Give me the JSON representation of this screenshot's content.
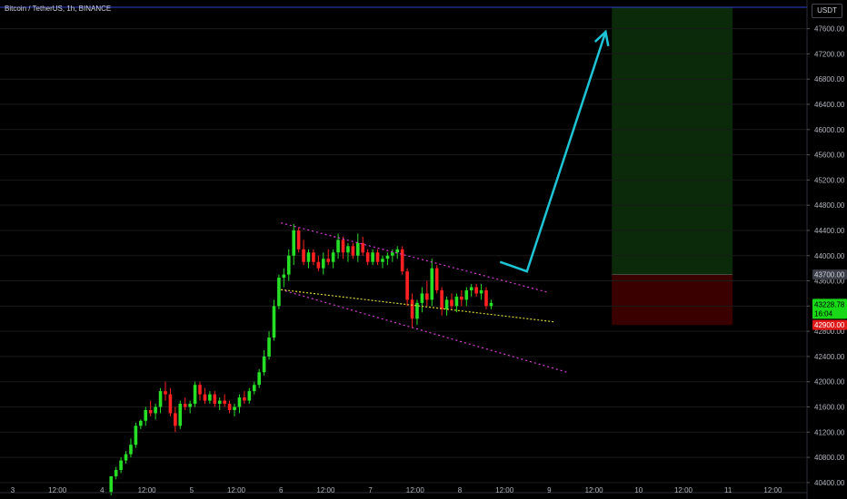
{
  "header": {
    "symbol": "Bitcoin / TetherUS, 1h, BINANCE",
    "currency": "USDT"
  },
  "chart_data": {
    "type": "candlestick",
    "ylim": [
      40240,
      47940
    ],
    "yticks": [
      40400,
      40800,
      41200,
      41600,
      42000,
      42400,
      42800,
      43200,
      43600,
      44000,
      44400,
      44800,
      45200,
      45600,
      46000,
      46400,
      46800,
      47200,
      47600
    ],
    "xticks": [
      "3",
      "12:00",
      "4",
      "12:00",
      "5",
      "12:00",
      "6",
      "12:00",
      "7",
      "12:00",
      "8",
      "12:00",
      "9",
      "12:00",
      "10",
      "12:00",
      "11",
      "12:00"
    ],
    "price_labels": {
      "target": "43700.00",
      "current": "43228.78",
      "countdown": "16:04",
      "stop": "42900.00"
    },
    "candles": [
      [
        40250,
        40200,
        40500,
        40500
      ],
      [
        40500,
        40450,
        40650,
        40600
      ],
      [
        40600,
        40550,
        40800,
        40750
      ],
      [
        40750,
        40700,
        40900,
        40850
      ],
      [
        40850,
        40800,
        41100,
        41000
      ],
      [
        41000,
        40950,
        41350,
        41300
      ],
      [
        41300,
        41250,
        41400,
        41380
      ],
      [
        41380,
        41300,
        41600,
        41550
      ],
      [
        41550,
        41450,
        41700,
        41500
      ],
      [
        41500,
        41400,
        41650,
        41600
      ],
      [
        41600,
        41500,
        41900,
        41850
      ],
      [
        41850,
        41700,
        42000,
        41800
      ],
      [
        41800,
        41450,
        41900,
        41500
      ],
      [
        41500,
        41200,
        41600,
        41300
      ],
      [
        41300,
        41250,
        41700,
        41650
      ],
      [
        41650,
        41550,
        41750,
        41600
      ],
      [
        41600,
        41500,
        41700,
        41650
      ],
      [
        41650,
        41600,
        42000,
        41950
      ],
      [
        41950,
        41700,
        42000,
        41800
      ],
      [
        41800,
        41650,
        41900,
        41700
      ],
      [
        41700,
        41650,
        41850,
        41800
      ],
      [
        41800,
        41600,
        41850,
        41650
      ],
      [
        41650,
        41550,
        41750,
        41700
      ],
      [
        41700,
        41600,
        41800,
        41650
      ],
      [
        41650,
        41500,
        41700,
        41550
      ],
      [
        41550,
        41450,
        41650,
        41600
      ],
      [
        41600,
        41500,
        41800,
        41750
      ],
      [
        41750,
        41650,
        41850,
        41700
      ],
      [
        41700,
        41650,
        41900,
        41850
      ],
      [
        41850,
        41800,
        42000,
        41950
      ],
      [
        41950,
        41900,
        42200,
        42150
      ],
      [
        42150,
        42100,
        42500,
        42400
      ],
      [
        42400,
        42350,
        42800,
        42700
      ],
      [
        42700,
        42650,
        43300,
        43200
      ],
      [
        43200,
        43150,
        43700,
        43650
      ],
      [
        43650,
        43500,
        43800,
        43700
      ],
      [
        43700,
        43600,
        44100,
        44000
      ],
      [
        44000,
        43850,
        44500,
        44400
      ],
      [
        44400,
        44050,
        44450,
        44100
      ],
      [
        44100,
        43850,
        44250,
        43900
      ],
      [
        43900,
        43800,
        44100,
        44050
      ],
      [
        44050,
        43850,
        44100,
        43900
      ],
      [
        43900,
        43750,
        44000,
        43800
      ],
      [
        43800,
        43700,
        44050,
        43950
      ],
      [
        43950,
        43850,
        44100,
        43900
      ],
      [
        43900,
        43800,
        44100,
        44050
      ],
      [
        44050,
        43950,
        44350,
        44250
      ],
      [
        44250,
        43950,
        44300,
        44050
      ],
      [
        44050,
        43900,
        44200,
        44150
      ],
      [
        44150,
        43950,
        44200,
        44000
      ],
      [
        44000,
        43900,
        44350,
        44200
      ],
      [
        44200,
        44000,
        44300,
        44050
      ],
      [
        44050,
        43850,
        44100,
        43900
      ],
      [
        43900,
        43850,
        44100,
        44050
      ],
      [
        44050,
        43850,
        44100,
        43900
      ],
      [
        43900,
        43800,
        44000,
        43950
      ],
      [
        43950,
        43850,
        44050,
        44000
      ],
      [
        44000,
        43900,
        44100,
        44050
      ],
      [
        44050,
        43950,
        44150,
        44100
      ],
      [
        44100,
        43700,
        44150,
        43750
      ],
      [
        43750,
        43200,
        43800,
        43300
      ],
      [
        43300,
        42850,
        43400,
        43000
      ],
      [
        43000,
        42900,
        43300,
        43250
      ],
      [
        43250,
        43100,
        43500,
        43400
      ],
      [
        43400,
        43200,
        43600,
        43300
      ],
      [
        43300,
        43200,
        43950,
        43800
      ],
      [
        43800,
        43400,
        43850,
        43450
      ],
      [
        43450,
        43050,
        43500,
        43150
      ],
      [
        43150,
        43050,
        43350,
        43300
      ],
      [
        43300,
        43150,
        43400,
        43200
      ],
      [
        43200,
        43100,
        43400,
        43350
      ],
      [
        43350,
        43200,
        43450,
        43300
      ],
      [
        43300,
        43200,
        43500,
        43450
      ],
      [
        43450,
        43350,
        43550,
        43500
      ],
      [
        43500,
        43350,
        43550,
        43400
      ],
      [
        43400,
        43300,
        43550,
        43450
      ],
      [
        43450,
        43150,
        43500,
        43200
      ],
      [
        43200,
        43150,
        43300,
        43250
      ]
    ],
    "annotations": {
      "channel_upper": [
        [
          6.0,
          44520
        ],
        [
          8.98,
          43420
        ]
      ],
      "channel_lower": [
        [
          6.0,
          43460
        ],
        [
          9.2,
          42150
        ]
      ],
      "support": [
        [
          6.0,
          43460
        ],
        [
          9.05,
          42950
        ]
      ],
      "arrow": [
        [
          8.45,
          43900
        ],
        [
          8.75,
          43750
        ],
        [
          9.63,
          47550
        ]
      ],
      "target_zone": [
        [
          9.7,
          47940
        ],
        [
          11.05,
          43700
        ]
      ],
      "stop_zone": [
        [
          9.7,
          43700
        ],
        [
          11.05,
          42900
        ]
      ]
    }
  },
  "colors": {
    "background": "#000000",
    "up": "#26e026",
    "down": "#ff2121",
    "grid": "#1a1a1a",
    "axis_text": "#b2b5be",
    "channel": "#d63cd6",
    "support": "#d9d634",
    "arrow": "#1ec4d6",
    "target_zone": "#0a2a0a",
    "stop_zone": "#3a0000",
    "top_line": "#3040d0",
    "target_label": "#3a3d46",
    "current_label": "#18d818",
    "stop_label": "#e01818"
  }
}
